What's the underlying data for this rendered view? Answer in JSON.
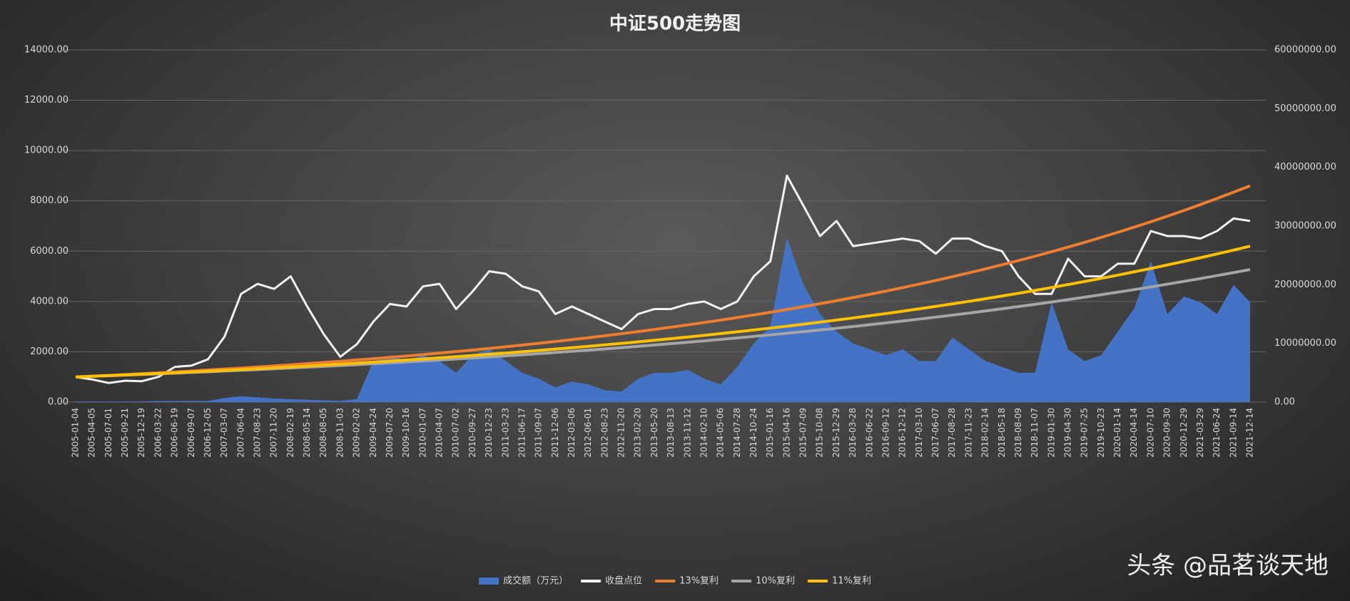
{
  "chart_data": {
    "type": "line",
    "title": "中证500走势图",
    "categories": [
      "2005-01-04",
      "2005-04-05",
      "2005-07-01",
      "2005-09-21",
      "2005-12-19",
      "2006-03-22",
      "2006-06-19",
      "2006-09-07",
      "2006-12-05",
      "2007-03-07",
      "2007-06-04",
      "2007-08-23",
      "2007-11-20",
      "2008-02-19",
      "2008-05-14",
      "2008-08-05",
      "2008-11-03",
      "2009-02-02",
      "2009-04-24",
      "2009-07-20",
      "2009-10-16",
      "2010-01-07",
      "2010-04-07",
      "2010-07-02",
      "2010-09-27",
      "2010-12-23",
      "2011-03-23",
      "2011-06-17",
      "2011-09-07",
      "2011-12-06",
      "2012-03-06",
      "2012-06-01",
      "2012-08-23",
      "2012-11-20",
      "2013-02-20",
      "2013-05-20",
      "2013-08-13",
      "2013-11-12",
      "2014-02-10",
      "2014-05-06",
      "2014-07-28",
      "2014-10-24",
      "2015-01-16",
      "2015-04-16",
      "2015-07-09",
      "2015-10-08",
      "2015-12-29",
      "2016-03-28",
      "2016-06-22",
      "2016-09-12",
      "2016-12-12",
      "2017-03-10",
      "2017-06-07",
      "2017-08-28",
      "2017-11-23",
      "2018-02-14",
      "2018-05-18",
      "2018-08-09",
      "2018-11-07",
      "2019-01-30",
      "2019-04-30",
      "2019-07-25",
      "2019-10-23",
      "2020-01-14",
      "2020-04-14",
      "2020-07-10",
      "2020-09-30",
      "2020-12-29",
      "2021-03-29",
      "2021-06-24",
      "2021-09-14",
      "2021-12-14"
    ],
    "series": [
      {
        "name": "成交额（万元）",
        "type": "area",
        "axis": "y2",
        "color": "#4472c4",
        "values": [
          100000,
          100000,
          100000,
          100000,
          100000,
          200000,
          200000,
          200000,
          200000,
          700000,
          1000000,
          800000,
          600000,
          500000,
          400000,
          300000,
          200000,
          500000,
          7000000,
          8000000,
          7000000,
          8000000,
          7000000,
          5000000,
          8000000,
          9000000,
          7000000,
          5000000,
          4000000,
          2500000,
          3500000,
          3000000,
          2000000,
          1800000,
          4000000,
          5000000,
          5000000,
          5500000,
          4000000,
          3000000,
          6000000,
          10000000,
          13000000,
          28000000,
          20000000,
          15000000,
          12000000,
          10000000,
          9000000,
          8000000,
          9000000,
          7000000,
          7000000,
          11000000,
          9000000,
          7000000,
          6000000,
          5000000,
          5000000,
          17000000,
          9000000,
          7000000,
          8000000,
          12000000,
          16000000,
          24000000,
          15000000,
          18000000,
          17000000,
          15000000,
          20000000,
          17000000
        ]
      },
      {
        "name": "收盘点位",
        "type": "line",
        "color": "#f2f2f2",
        "values": [
          1000,
          900,
          760,
          850,
          830,
          1000,
          1400,
          1450,
          1700,
          2600,
          4300,
          4700,
          4500,
          5000,
          3800,
          2700,
          1800,
          2300,
          3200,
          3900,
          3800,
          4600,
          4700,
          3700,
          4400,
          5200,
          5100,
          4600,
          4400,
          3500,
          3800,
          3500,
          3200,
          2900,
          3500,
          3700,
          3700,
          3900,
          4000,
          3700,
          4000,
          5000,
          5600,
          9000,
          7800,
          6600,
          7200,
          6200,
          6300,
          6400,
          6500,
          6400,
          5900,
          6500,
          6500,
          6200,
          6000,
          5000,
          4300,
          4300,
          5700,
          5000,
          5000,
          5500,
          5500,
          6800,
          6600,
          6600,
          6500,
          6800,
          7300,
          7200
        ]
      },
      {
        "name": "13%复利",
        "type": "line",
        "color": "#ed7d31",
        "values": [
          1000,
          1031,
          1063,
          1095,
          1129,
          1164,
          1199,
          1236,
          1274,
          1314,
          1354,
          1396,
          1439,
          1483,
          1529,
          1576,
          1624,
          1674,
          1726,
          1779,
          1833,
          1890,
          1948,
          2008,
          2070,
          2133,
          2199,
          2267,
          2337,
          2408,
          2483,
          2559,
          2638,
          2719,
          2802,
          2889,
          2978,
          3069,
          3164,
          3261,
          3361,
          3465,
          3571,
          3681,
          3794,
          3911,
          4031,
          4155,
          4283,
          4415,
          4551,
          4691,
          4835,
          4984,
          5137,
          5295,
          5458,
          5626,
          5799,
          5977,
          6161,
          6351,
          6546,
          6748,
          6955,
          7169,
          7390,
          7617,
          7852,
          8093,
          8342,
          8599
        ]
      },
      {
        "name": "10%复利",
        "type": "line",
        "color": "#a5a5a5",
        "values": [
          1000,
          1024,
          1048,
          1073,
          1098,
          1124,
          1151,
          1178,
          1206,
          1235,
          1264,
          1294,
          1324,
          1356,
          1388,
          1421,
          1454,
          1489,
          1524,
          1560,
          1597,
          1635,
          1674,
          1713,
          1754,
          1795,
          1838,
          1882,
          1926,
          1972,
          2018,
          2066,
          2115,
          2165,
          2217,
          2269,
          2323,
          2378,
          2434,
          2492,
          2551,
          2611,
          2673,
          2736,
          2801,
          2867,
          2935,
          3005,
          3076,
          3149,
          3223,
          3300,
          3378,
          3458,
          3540,
          3624,
          3709,
          3797,
          3887,
          3979,
          4074,
          4170,
          4269,
          4370,
          4473,
          4579,
          4688,
          4799,
          4912,
          5029,
          5148,
          5270
        ]
      },
      {
        "name": "11%复利",
        "type": "line",
        "color": "#ffc000",
        "values": [
          1000,
          1026,
          1053,
          1080,
          1108,
          1137,
          1167,
          1197,
          1228,
          1260,
          1293,
          1327,
          1361,
          1397,
          1433,
          1470,
          1509,
          1548,
          1588,
          1629,
          1672,
          1715,
          1760,
          1806,
          1853,
          1901,
          1950,
          2001,
          2053,
          2107,
          2162,
          2218,
          2276,
          2335,
          2396,
          2458,
          2522,
          2587,
          2655,
          2724,
          2795,
          2868,
          2942,
          3019,
          3097,
          3178,
          3261,
          3346,
          3433,
          3522,
          3614,
          3708,
          3804,
          3903,
          4005,
          4109,
          4216,
          4326,
          4439,
          4554,
          4673,
          4794,
          4919,
          5047,
          5179,
          5313,
          5452,
          5594,
          5739,
          5889,
          6042,
          6199
        ]
      }
    ],
    "ylim": [
      0,
      14000
    ],
    "yticks": [
      {
        "value": 0,
        "label": "0.00"
      },
      {
        "value": 2000,
        "label": "2000.00"
      },
      {
        "value": 4000,
        "label": "4000.00"
      },
      {
        "value": 6000,
        "label": "6000.00"
      },
      {
        "value": 8000,
        "label": "8000.00"
      },
      {
        "value": 10000,
        "label": "10000.00"
      },
      {
        "value": 12000,
        "label": "12000.00"
      },
      {
        "value": 14000,
        "label": "14000.00"
      }
    ],
    "y2lim": [
      0,
      60000000
    ],
    "y2ticks": [
      {
        "value": 0,
        "label": "0.00"
      },
      {
        "value": 10000000,
        "label": "10000000.00"
      },
      {
        "value": 20000000,
        "label": "20000000.00"
      },
      {
        "value": 30000000,
        "label": "30000000.00"
      },
      {
        "value": 40000000,
        "label": "40000000.00"
      },
      {
        "value": 50000000,
        "label": "50000000.00"
      },
      {
        "value": 60000000,
        "label": "60000000.00"
      }
    ],
    "grid": true,
    "legend": "bottom"
  },
  "watermark": "头条 @品茗谈天地"
}
